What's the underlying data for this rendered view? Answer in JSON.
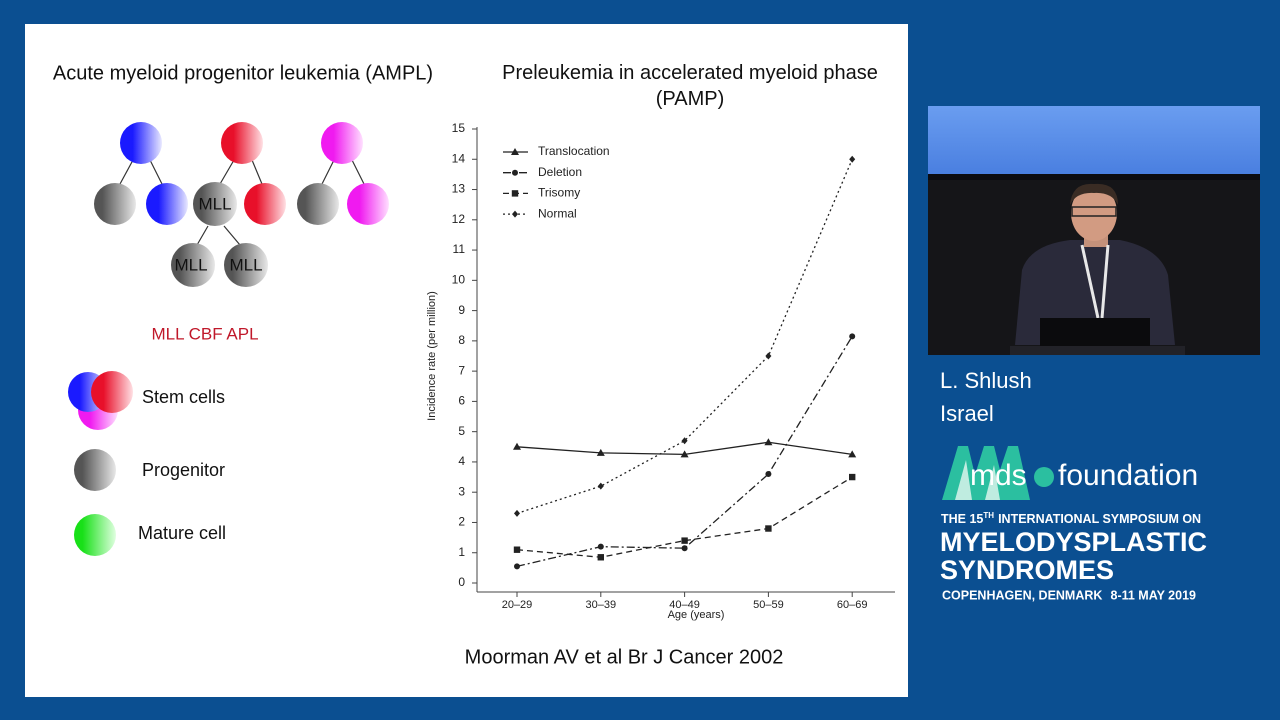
{
  "slide": {
    "left_title": "Acute myeloid progenitor leukemia (AMPL)",
    "node_labels": [
      "MLL",
      "MLL",
      "MLL"
    ],
    "subtypes": "MLL CBF APL",
    "legend": [
      "Stem cells",
      "Progenitor",
      "Mature cell"
    ],
    "citation": "Moorman AV et al Br J Cancer 2002"
  },
  "chart_data": {
    "type": "line",
    "title": "Preleukemia in accelerated myeloid phase (PAMP)",
    "xlabel": "Age (years)",
    "ylabel": "Incidence rate (per million)",
    "categories": [
      "20–29",
      "30–39",
      "40–49",
      "50–59",
      "60–69"
    ],
    "series": [
      {
        "name": "Translocation",
        "color": "#222222",
        "marker": "triangle",
        "line_style": "solid",
        "values": [
          4.5,
          4.3,
          4.25,
          4.65,
          4.25
        ]
      },
      {
        "name": "Deletion",
        "color": "#222222",
        "marker": "circle",
        "line_style": "dashdot",
        "values": [
          0.55,
          1.2,
          1.15,
          3.6,
          8.15
        ]
      },
      {
        "name": "Trisomy",
        "color": "#222222",
        "marker": "square",
        "line_style": "dashed",
        "values": [
          1.1,
          0.85,
          1.4,
          1.8,
          3.5
        ]
      },
      {
        "name": "Normal",
        "color": "#222222",
        "marker": "diamond",
        "line_style": "dotted",
        "values": [
          2.3,
          3.2,
          4.7,
          7.5,
          14.0
        ]
      }
    ],
    "ylim": [
      0,
      15
    ],
    "yticks": [
      0,
      1,
      2,
      3,
      4,
      5,
      6,
      7,
      8,
      9,
      10,
      11,
      12,
      13,
      14,
      15
    ],
    "legend": "upper left"
  },
  "speaker": {
    "name": "L. Shlush",
    "country": "Israel"
  },
  "event": {
    "logo_mds": "mds",
    "logo_foundation": "foundation",
    "line1_prefix": "THE 15",
    "line1_sup": "TH",
    "line1_suffix": "INTERNATIONAL SYMPOSIUM ON",
    "line2": "MYELODYSPLASTIC",
    "line3": "SYNDROMES",
    "location": "COPENHAGEN, DENMARK",
    "dates": "8-11 MAY 2019"
  }
}
